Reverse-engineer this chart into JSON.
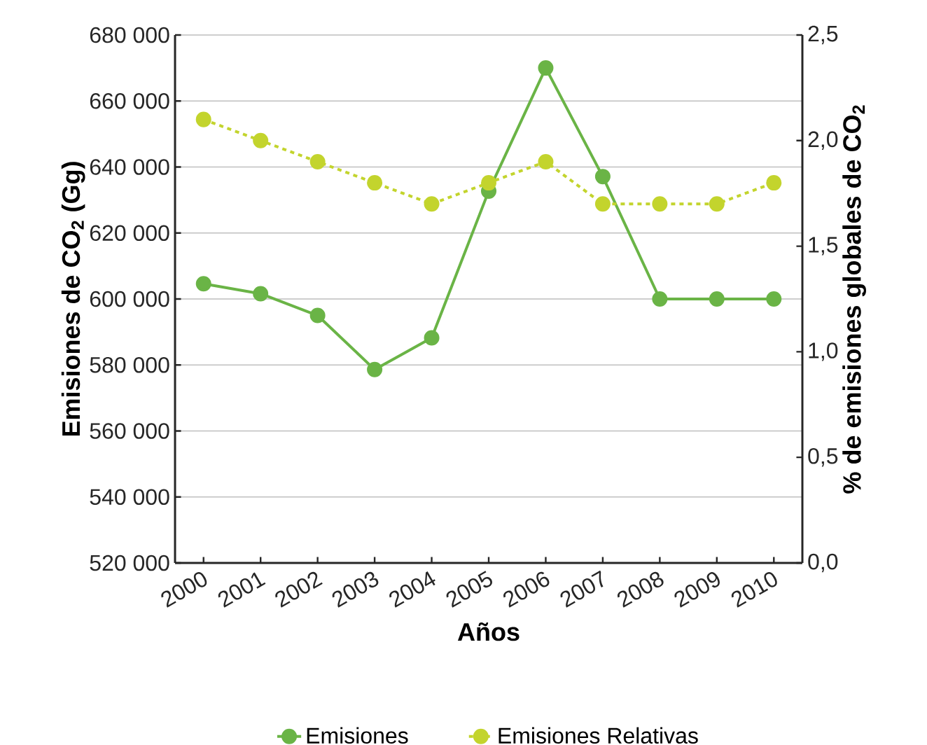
{
  "chart_data": {
    "type": "line",
    "xlabel": "Años",
    "ylabel": "Emisiones de CO$_{2}$ (Gg)",
    "y2label": "% de emisiones globales de CO$_{2}$",
    "categories": [
      "2000",
      "2001",
      "2002",
      "2003",
      "2004",
      "2005",
      "2006",
      "2007",
      "2008",
      "2009",
      "2010"
    ],
    "series": [
      {
        "name": "Emisiones",
        "color": "#6ab446",
        "line_style": "solid",
        "values": [
          604600,
          601600,
          595000,
          578600,
          588200,
          632700,
          670000,
          637100,
          600000,
          600000,
          600000
        ]
      },
      {
        "name": "Emisiones Relativas",
        "color": "#c3d42d",
        "line_style": "dashed",
        "axis": "y2",
        "values": [
          2.1,
          2.0,
          1.9,
          1.8,
          1.7,
          1.8,
          1.9,
          1.7,
          1.7,
          1.7,
          1.8
        ]
      }
    ],
    "ylim": [
      520000,
      680000
    ],
    "yticks": [
      {
        "value": 520000,
        "label": "520 000"
      },
      {
        "value": 540000,
        "label": "540 000"
      },
      {
        "value": 560000,
        "label": "560 000"
      },
      {
        "value": 580000,
        "label": "580 000"
      },
      {
        "value": 600000,
        "label": "600 000"
      },
      {
        "value": 620000,
        "label": "620 000"
      },
      {
        "value": 640000,
        "label": "640 000"
      },
      {
        "value": 660000,
        "label": "660 000"
      },
      {
        "value": 680000,
        "label": "680 000"
      }
    ],
    "y2lim": [
      0,
      2.5
    ],
    "y2ticks": [
      {
        "value": 0,
        "label": "0,0"
      },
      {
        "value": 0.5,
        "label": "0,5"
      },
      {
        "value": 1.0,
        "label": "1,0"
      },
      {
        "value": 1.5,
        "label": "1,5"
      },
      {
        "value": 2.0,
        "label": "2,0"
      },
      {
        "value": 2.5,
        "label": "2,5"
      }
    ],
    "grid": "y",
    "legend": "bottom",
    "marker": "circle"
  }
}
